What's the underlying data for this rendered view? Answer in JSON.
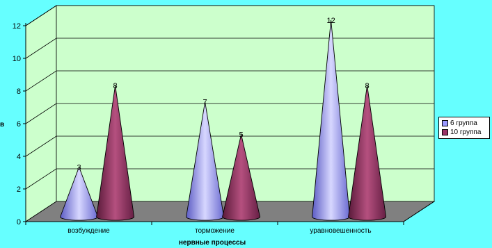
{
  "chart_data": {
    "type": "bar",
    "mark_shape": "3d-cone",
    "categories": [
      "возбуждение",
      "торможение",
      "уравновешенность"
    ],
    "series": [
      {
        "name": "6 группа",
        "values": [
          3,
          7,
          12
        ],
        "color": "#9999ff"
      },
      {
        "name": "10 группа",
        "values": [
          8,
          5,
          8
        ],
        "color": "#993366"
      }
    ],
    "xlabel": "нервные процессы",
    "ylabel": "в",
    "ylim": [
      0,
      12
    ],
    "y_ticks": [
      0,
      2,
      4,
      6,
      8,
      10,
      12
    ],
    "grid": true,
    "legend": "right",
    "colors": {
      "page_background": "#66ffff",
      "wall": "#ccffcc",
      "floor": "#808080"
    }
  }
}
